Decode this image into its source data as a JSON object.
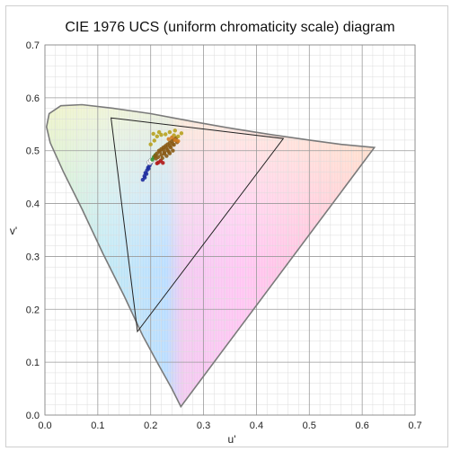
{
  "chart_data": {
    "type": "scatter",
    "title": "CIE 1976 UCS (uniform chromaticity scale) diagram",
    "xlabel": "u'",
    "ylabel": "v'",
    "xlim": [
      0,
      0.7
    ],
    "ylim": [
      0,
      0.7
    ],
    "x_ticks": [
      "0.0",
      "0.1",
      "0.2",
      "0.3",
      "0.4",
      "0.5",
      "0.6",
      "0.7"
    ],
    "y_ticks": [
      "0.0",
      "0.1",
      "0.2",
      "0.3",
      "0.4",
      "0.5",
      "0.6",
      "0.7"
    ],
    "grid": true,
    "spectral_locus": [
      [
        0.257,
        0.016
      ],
      [
        0.24,
        0.05
      ],
      [
        0.215,
        0.095
      ],
      [
        0.185,
        0.15
      ],
      [
        0.15,
        0.225
      ],
      [
        0.11,
        0.305
      ],
      [
        0.07,
        0.39
      ],
      [
        0.035,
        0.46
      ],
      [
        0.01,
        0.515
      ],
      [
        0.003,
        0.545
      ],
      [
        0.008,
        0.57
      ],
      [
        0.03,
        0.585
      ],
      [
        0.07,
        0.587
      ],
      [
        0.13,
        0.58
      ],
      [
        0.2,
        0.57
      ],
      [
        0.28,
        0.555
      ],
      [
        0.36,
        0.541
      ],
      [
        0.43,
        0.53
      ],
      [
        0.5,
        0.52
      ],
      [
        0.56,
        0.512
      ],
      [
        0.623,
        0.506
      ]
    ],
    "gamut_triangle": [
      [
        0.125,
        0.562
      ],
      [
        0.451,
        0.523
      ],
      [
        0.175,
        0.158
      ]
    ],
    "clusters": [
      {
        "color": "#1f2fa0",
        "points": [
          [
            0.185,
            0.445
          ],
          [
            0.188,
            0.452
          ],
          [
            0.19,
            0.458
          ],
          [
            0.193,
            0.463
          ],
          [
            0.195,
            0.468
          ],
          [
            0.198,
            0.472
          ],
          [
            0.2,
            0.476
          ],
          [
            0.196,
            0.466
          ],
          [
            0.189,
            0.449
          ],
          [
            0.192,
            0.456
          ]
        ]
      },
      {
        "color": "#ffffff",
        "points": [
          [
            0.198,
            0.478
          ],
          [
            0.201,
            0.481
          ]
        ]
      },
      {
        "color": "#2f8f2f",
        "points": [
          [
            0.203,
            0.483
          ],
          [
            0.206,
            0.488
          ],
          [
            0.209,
            0.492
          ]
        ]
      },
      {
        "color": "#b01818",
        "points": [
          [
            0.215,
            0.478
          ],
          [
            0.219,
            0.481
          ],
          [
            0.223,
            0.477
          ],
          [
            0.212,
            0.476
          ]
        ]
      },
      {
        "color": "#8a5a14",
        "points": [
          [
            0.208,
            0.49
          ],
          [
            0.212,
            0.495
          ],
          [
            0.216,
            0.5
          ],
          [
            0.22,
            0.503
          ],
          [
            0.224,
            0.506
          ],
          [
            0.228,
            0.509
          ],
          [
            0.232,
            0.512
          ],
          [
            0.236,
            0.515
          ],
          [
            0.24,
            0.518
          ],
          [
            0.244,
            0.521
          ],
          [
            0.248,
            0.524
          ],
          [
            0.214,
            0.488
          ],
          [
            0.22,
            0.492
          ],
          [
            0.226,
            0.497
          ],
          [
            0.232,
            0.501
          ],
          [
            0.238,
            0.506
          ],
          [
            0.244,
            0.511
          ],
          [
            0.25,
            0.516
          ],
          [
            0.222,
            0.486
          ],
          [
            0.23,
            0.49
          ],
          [
            0.236,
            0.495
          ],
          [
            0.242,
            0.5
          ],
          [
            0.218,
            0.498
          ],
          [
            0.224,
            0.502
          ],
          [
            0.23,
            0.505
          ],
          [
            0.236,
            0.509
          ],
          [
            0.242,
            0.513
          ],
          [
            0.226,
            0.494
          ],
          [
            0.234,
            0.498
          ],
          [
            0.21,
            0.485
          ]
        ]
      },
      {
        "color": "#b7a11e",
        "points": [
          [
            0.205,
            0.532
          ],
          [
            0.212,
            0.527
          ],
          [
            0.22,
            0.53
          ],
          [
            0.228,
            0.531
          ],
          [
            0.236,
            0.535
          ],
          [
            0.244,
            0.529
          ],
          [
            0.252,
            0.527
          ],
          [
            0.258,
            0.533
          ],
          [
            0.216,
            0.535
          ],
          [
            0.2,
            0.512
          ],
          [
            0.207,
            0.519
          ],
          [
            0.246,
            0.538
          ]
        ]
      },
      {
        "color": "#d07a1e",
        "points": [
          [
            0.234,
            0.522
          ],
          [
            0.24,
            0.525
          ],
          [
            0.246,
            0.52
          ],
          [
            0.252,
            0.518
          ]
        ]
      }
    ]
  }
}
